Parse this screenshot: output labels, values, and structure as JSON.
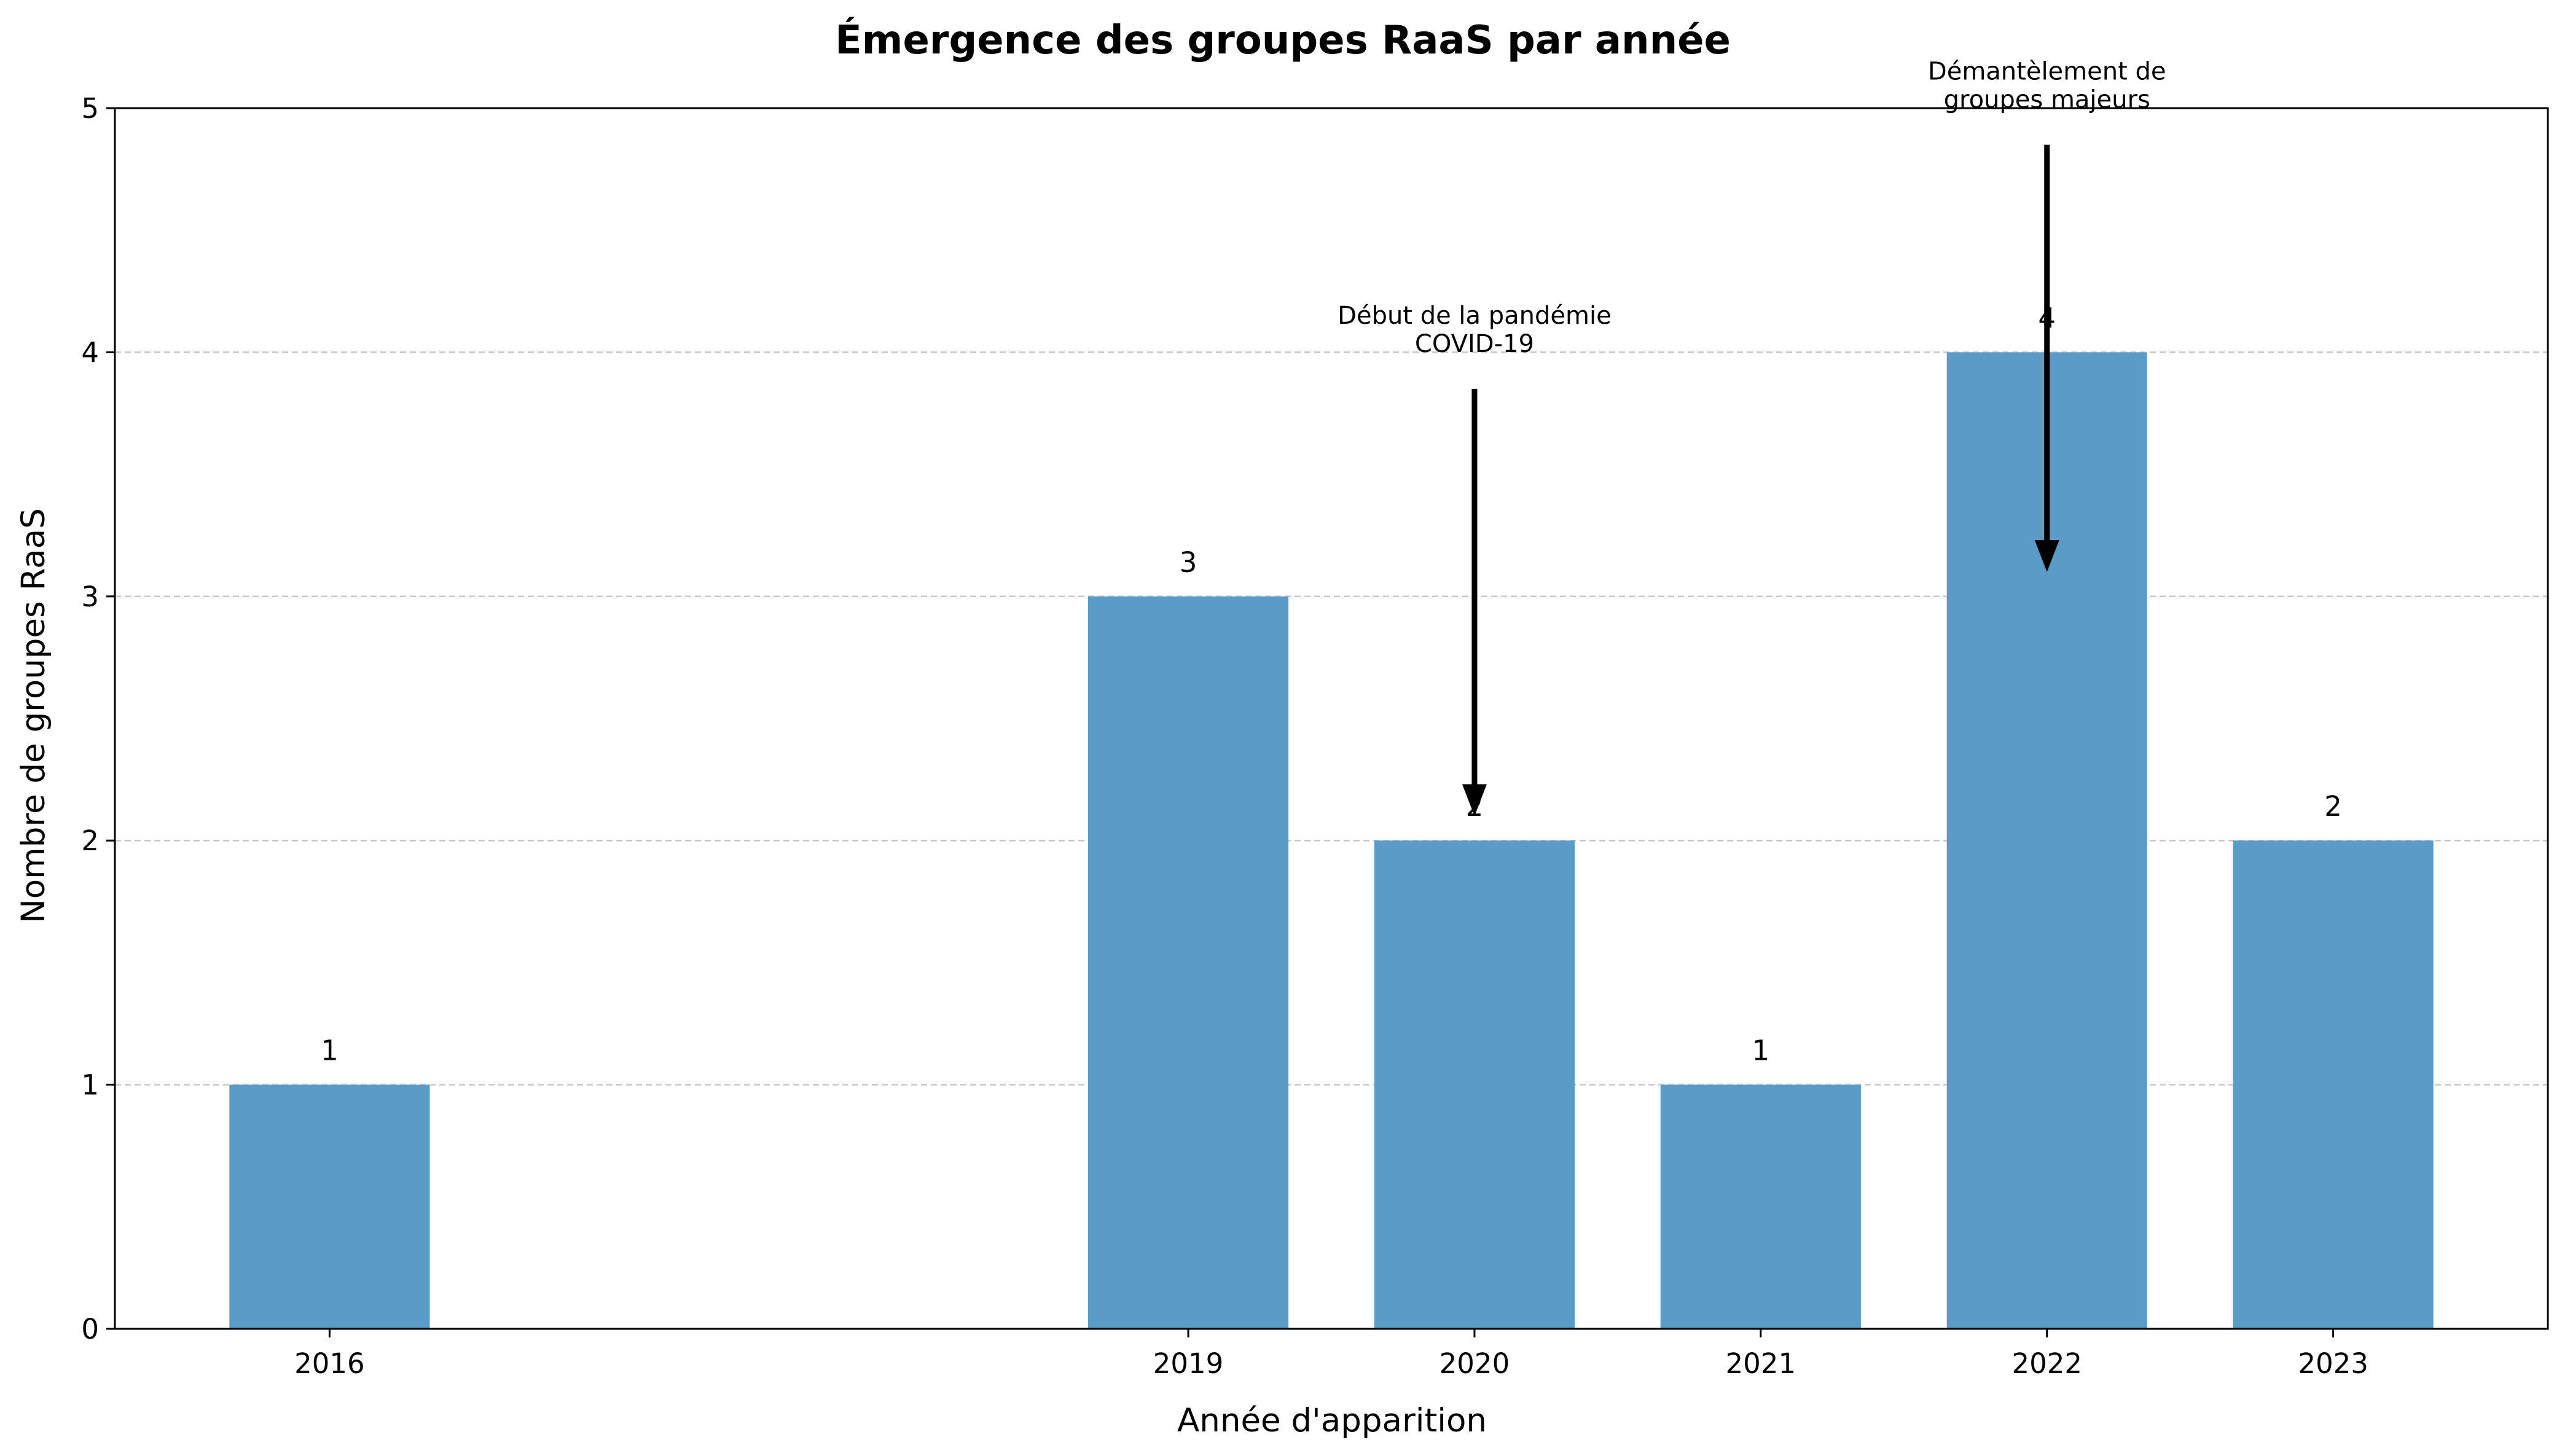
{
  "chart_data": {
    "type": "bar",
    "title": "Émergence des groupes RaaS par année",
    "xlabel": "Année d'apparition",
    "ylabel": "Nombre de groupes RaaS",
    "x": [
      2016,
      2019,
      2020,
      2021,
      2022,
      2023
    ],
    "categories": [
      "2016",
      "2019",
      "2020",
      "2021",
      "2022",
      "2023"
    ],
    "values": [
      1,
      3,
      2,
      1,
      4,
      2
    ],
    "value_labels": [
      "1",
      "3",
      "2",
      "1",
      "4",
      "2"
    ],
    "xlim": [
      2015.25,
      2023.75
    ],
    "ylim": [
      0,
      5
    ],
    "yticks": [
      0,
      1,
      2,
      3,
      4,
      5
    ],
    "ytick_labels": [
      "0",
      "1",
      "2",
      "3",
      "4",
      "5"
    ],
    "grid": "y, dashed",
    "bar_color": "#5b9bc8",
    "annotations": [
      {
        "lines": [
          "Début de la pandémie",
          "COVID-19"
        ],
        "x": 2020,
        "y": 2.1,
        "text_y": 3.85
      },
      {
        "lines": [
          "Démantèlement de",
          "groupes majeurs"
        ],
        "x": 2022,
        "y": 3.1,
        "text_y": 4.85
      }
    ]
  }
}
